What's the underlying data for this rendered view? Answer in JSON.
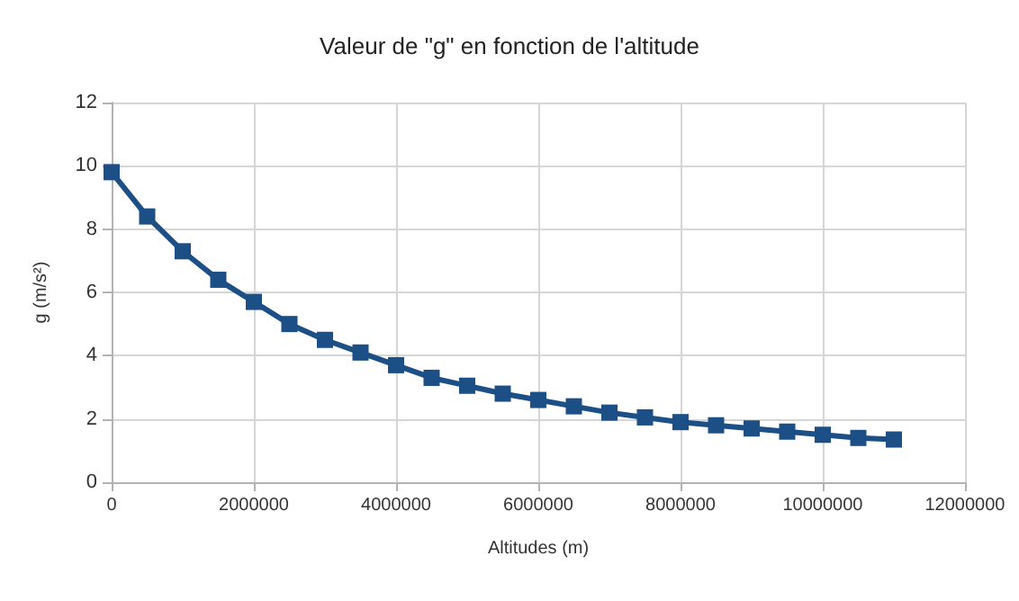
{
  "chart_data": {
    "type": "line",
    "title": "Valeur de \"g\" en fonction de l'altitude",
    "xlabel": "Altitudes (m)",
    "ylabel": "g (m/s²)",
    "x": [
      0,
      500000,
      1000000,
      1500000,
      2000000,
      2500000,
      3000000,
      3500000,
      4000000,
      4500000,
      5000000,
      5500000,
      6000000,
      6500000,
      7000000,
      7500000,
      8000000,
      8500000,
      9000000,
      9500000,
      10000000,
      10500000,
      11000000
    ],
    "series": [
      {
        "color": "#1b4f85",
        "values": [
          9.8,
          8.4,
          7.3,
          6.4,
          5.7,
          5.0,
          4.5,
          4.1,
          3.7,
          3.3,
          3.05,
          2.8,
          2.6,
          2.4,
          2.2,
          2.05,
          1.9,
          1.8,
          1.7,
          1.6,
          1.5,
          1.4,
          1.35
        ]
      }
    ],
    "xlim": [
      0,
      12000000
    ],
    "xticks": [
      0,
      2000000,
      4000000,
      6000000,
      8000000,
      10000000,
      12000000
    ],
    "ylim": [
      0,
      12
    ],
    "yticks": [
      0,
      2,
      4,
      6,
      8,
      10,
      12
    ],
    "grid": true,
    "marker": "square",
    "line_style": "solid"
  }
}
